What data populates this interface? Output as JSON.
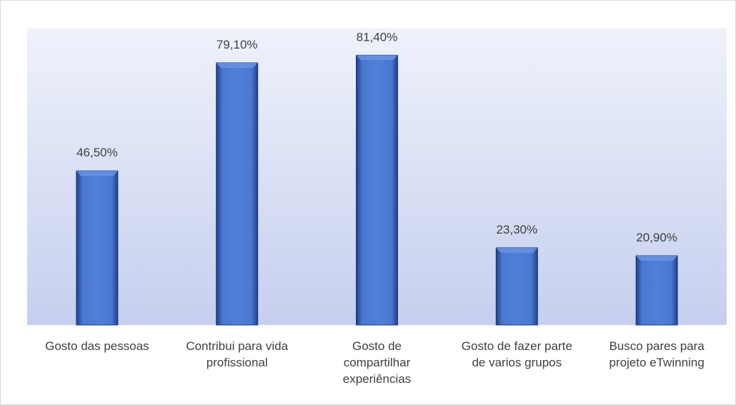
{
  "chart_data": {
    "type": "bar",
    "categories": [
      "Gosto das pessoas",
      "Contribui para vida profissional",
      "Gosto de compartilhar experiências",
      "Gosto de fazer parte de varios grupos",
      "Busco pares para projeto eTwinning"
    ],
    "values": [
      46.5,
      79.1,
      81.4,
      23.3,
      20.9
    ],
    "value_labels": [
      "46,50%",
      "79,10%",
      "81,40%",
      "23,30%",
      "20,90%"
    ],
    "color": "#4472c4"
  }
}
